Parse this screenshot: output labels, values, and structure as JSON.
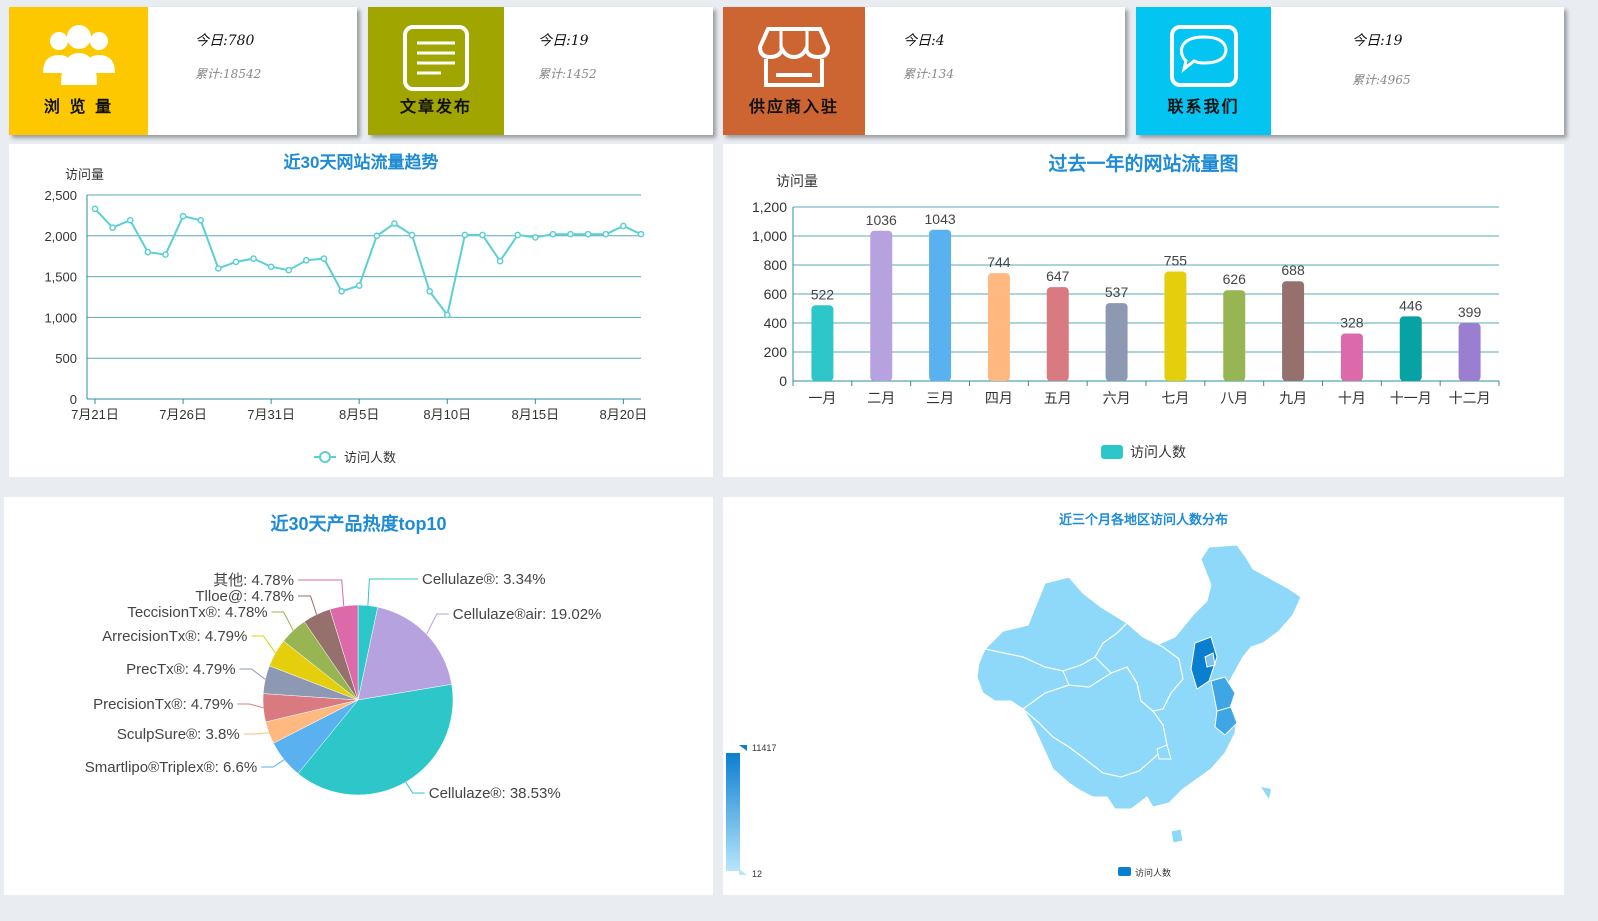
{
  "cards": [
    {
      "label": "浏 览 量",
      "today": "今日:780",
      "total": "累计:18542",
      "color": "#fec800",
      "icon": "users-icon"
    },
    {
      "label": "文章发布",
      "today": "今日:19",
      "total": "累计:1452",
      "color": "#a0a500",
      "icon": "document-icon"
    },
    {
      "label": "供应商入驻",
      "today": "今日:4",
      "total": "累计:134",
      "color": "#cd6533",
      "icon": "store-icon"
    },
    {
      "label": "联系我们",
      "today": "今日:19",
      "total": "累计:4965",
      "color": "#04c4f1",
      "icon": "chat-icon"
    }
  ],
  "trend": {
    "title": "近30天网站流量趋势",
    "ylabel": "访问量",
    "legend": "访问人数",
    "line_color": "#5ad0d3",
    "y_ticks": [
      "2,500",
      "2,000",
      "1,500",
      "1,000",
      "500",
      "0"
    ],
    "x_ticks": [
      "7月21日",
      "7月26日",
      "7月31日",
      "8月5日",
      "8月10日",
      "8月15日",
      "8月20日"
    ]
  },
  "yearly": {
    "title": "过去一年的网站流量图",
    "ylabel": "访问量",
    "legend": "访问人数",
    "legend_color": "#2ec7c9",
    "y_ticks": [
      "1,200",
      "1,000",
      "800",
      "600",
      "400",
      "200",
      "0"
    ],
    "months": [
      "一月",
      "二月",
      "三月",
      "四月",
      "五月",
      "六月",
      "七月",
      "八月",
      "九月",
      "十月",
      "十一月",
      "十二月"
    ],
    "value_labels": [
      "522",
      "1036",
      "1043",
      "744",
      "647",
      "537",
      "755",
      "626",
      "688",
      "328",
      "446",
      "399"
    ],
    "colors": [
      "#2ec7c9",
      "#b6a2de",
      "#5ab1ef",
      "#ffb980",
      "#d87a80",
      "#8d98b3",
      "#e5cf0d",
      "#97b552",
      "#95706d",
      "#dc69aa",
      "#07a2a4",
      "#9a7fd1"
    ]
  },
  "pie": {
    "title": "近30天产品热度top10",
    "slices": [
      {
        "label": "Cellulaze®: 3.34%",
        "value": 3.34,
        "color": "#2ec7c9"
      },
      {
        "label": "Cellulaze®air: 19.02%",
        "value": 19.02,
        "color": "#b6a2de"
      },
      {
        "label": "Cellulaze®: 38.53%",
        "value": 38.53,
        "color": "#2ec7c9"
      },
      {
        "label": "Smartlipo®Triplex®: 6.6%",
        "value": 6.6,
        "color": "#5ab1ef"
      },
      {
        "label": "SculpSure®: 3.8%",
        "value": 3.8,
        "color": "#ffb980"
      },
      {
        "label": "PrecisionTx®: 4.79%",
        "value": 4.79,
        "color": "#d87a80"
      },
      {
        "label": "PrecTx®: 4.79%",
        "value": 4.79,
        "color": "#8d98b3"
      },
      {
        "label": "ArrecisionTx®: 4.79%",
        "value": 4.79,
        "color": "#e5cf0d"
      },
      {
        "label": "TeccisionTx®: 4.78%",
        "value": 4.78,
        "color": "#97b552"
      },
      {
        "label": "Tlloe@: 4.78%",
        "value": 4.78,
        "color": "#95706d"
      },
      {
        "label": "其他: 4.78%",
        "value": 4.78,
        "color": "#dc69aa"
      }
    ]
  },
  "map": {
    "title": "近三个月各地区访问人数分布",
    "range_max": "11417",
    "range_min": "12",
    "legend": "访问人数",
    "base_color": "#8ed8fa",
    "dark_color": "#0a7fd0"
  },
  "chart_data": [
    {
      "type": "line",
      "title": "近30天网站流量趋势",
      "ylabel": "访问量",
      "ylim": [
        0,
        2500
      ],
      "series": [
        {
          "name": "访问人数",
          "values": [
            2330,
            2100,
            2190,
            1800,
            1770,
            2240,
            2190,
            1600,
            1680,
            1720,
            1620,
            1580,
            1700,
            1720,
            1320,
            1390,
            2000,
            2150,
            2010,
            1320,
            1030,
            2010,
            2010,
            1690,
            2010,
            1980,
            2020,
            2020,
            2020,
            2020,
            2120,
            2020
          ]
        }
      ],
      "x_tick_labels": [
        "7月21日",
        "7月26日",
        "7月31日",
        "8月5日",
        "8月10日",
        "8月15日",
        "8月20日"
      ]
    },
    {
      "type": "bar",
      "title": "过去一年的网站流量图",
      "ylabel": "访问量",
      "ylim": [
        0,
        1200
      ],
      "categories": [
        "一月",
        "二月",
        "三月",
        "四月",
        "五月",
        "六月",
        "七月",
        "八月",
        "九月",
        "十月",
        "十一月",
        "十二月"
      ],
      "series": [
        {
          "name": "访问人数",
          "values": [
            522,
            1036,
            1043,
            744,
            647,
            537,
            755,
            626,
            688,
            328,
            446,
            399
          ]
        }
      ]
    },
    {
      "type": "pie",
      "title": "近30天产品热度top10",
      "categories": [
        "Cellulaze®",
        "Cellulaze®air",
        "Cellulaze®",
        "Smartlipo®Triplex®",
        "SculpSure®",
        "PrecisionTx®",
        "PrecTx®",
        "ArrecisionTx®",
        "TeccisionTx®",
        "Tlloe@",
        "其他"
      ],
      "values": [
        3.34,
        19.02,
        38.53,
        6.6,
        3.8,
        4.79,
        4.79,
        4.79,
        4.78,
        4.78,
        4.78
      ]
    }
  ]
}
